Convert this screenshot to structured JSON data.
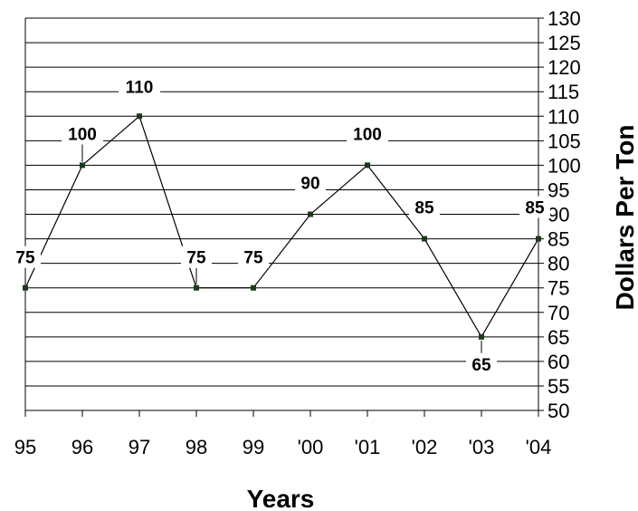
{
  "chart_data": {
    "type": "line",
    "categories": [
      "95",
      "96",
      "97",
      "98",
      "99",
      "'00",
      "'01",
      "'02",
      "'03",
      "'04"
    ],
    "series": [
      {
        "values": [
          75,
          100,
          110,
          75,
          75,
          90,
          100,
          85,
          65,
          85
        ]
      }
    ],
    "data_labels": [
      "75",
      "100",
      "110",
      "75",
      "75",
      "90",
      "100",
      "85",
      "65",
      "85"
    ],
    "xlabel": "Years",
    "ylabel": "Dollars Per Ton",
    "ylim": [
      50,
      130
    ],
    "ytick_step": 5,
    "yaxis_position": "right",
    "grid": true,
    "line_color": "#000000"
  }
}
